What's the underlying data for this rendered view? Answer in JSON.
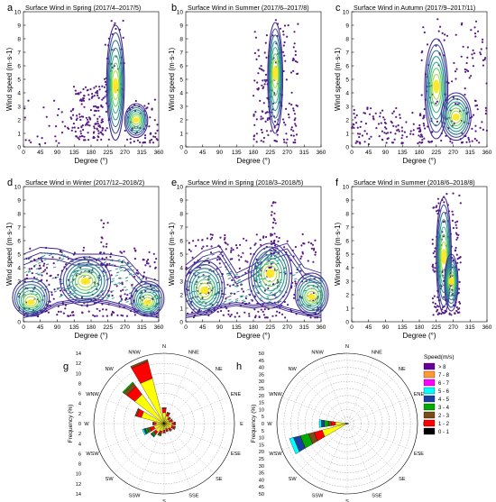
{
  "colors": {
    "scatter": "#5a1a86",
    "contour_low": "#3b1f8f",
    "contour_mid": "#1f9e89",
    "contour_high": "#fde725",
    "grid": "#bbbbbb"
  },
  "chart_data": [
    {
      "type": "scatter",
      "panel": "a",
      "title": "Surface Wind in Spring (2017/4–2017/5)",
      "xlabel": "Degree (°)",
      "ylabel": "Wind speed (m·s-1)",
      "xticks": [
        "0",
        "45",
        "90",
        "135",
        "180",
        "225",
        "270",
        "315",
        "360"
      ],
      "yticks": [
        "0",
        "1",
        "2",
        "3",
        "4",
        "5",
        "6",
        "7",
        "8",
        "9",
        "10"
      ],
      "xlim": [
        0,
        360
      ],
      "ylim": [
        0,
        10
      ],
      "density_peaks": [
        {
          "x": 245,
          "y": 4.2
        },
        {
          "x": 300,
          "y": 2.0
        }
      ],
      "ridges": [
        {
          "center": 245,
          "xspread": 18,
          "peakY": 4.5,
          "topY": 9.0,
          "bottomY": 0.5,
          "width": 22
        },
        {
          "center": 300,
          "xspread": 18,
          "peakY": 2.0,
          "topY": 3.2,
          "bottomY": 0.7,
          "width": 30
        }
      ],
      "scatter_clouds": [
        {
          "x0": 130,
          "x1": 230,
          "y0": 0.5,
          "y1": 4.5,
          "n": 150
        },
        {
          "x0": 0,
          "x1": 130,
          "y0": 0.2,
          "y1": 3.5,
          "n": 30
        },
        {
          "x0": 215,
          "x1": 270,
          "y0": 4,
          "y1": 9.6,
          "n": 40
        },
        {
          "x0": 270,
          "x1": 360,
          "y0": 0.3,
          "y1": 3.5,
          "n": 60
        }
      ]
    },
    {
      "type": "scatter",
      "panel": "b",
      "title": "Surface Wind in Summer (2017/6–2017/8)",
      "xlabel": "Degree (°)",
      "ylabel": "Wind speed (m·s-1)",
      "xticks": [
        "0",
        "45",
        "90",
        "135",
        "180",
        "225",
        "270",
        "315",
        "360"
      ],
      "yticks": [
        "0",
        "1",
        "2",
        "3",
        "4",
        "5",
        "6",
        "7",
        "8",
        "9",
        "10"
      ],
      "xlim": [
        0,
        360
      ],
      "ylim": [
        0,
        10
      ],
      "density_peaks": [
        {
          "x": 235,
          "y": 6.0
        },
        {
          "x": 255,
          "y": 2.8
        }
      ],
      "ridges": [
        {
          "center": 238,
          "xspread": 12,
          "peakY": 5.5,
          "topY": 9.2,
          "bottomY": 1.0,
          "width": 18
        }
      ],
      "scatter_clouds": [
        {
          "x0": 180,
          "x1": 300,
          "y0": 0.3,
          "y1": 9.5,
          "n": 160
        },
        {
          "x0": 200,
          "x1": 230,
          "y0": 2,
          "y1": 5,
          "n": 20
        }
      ]
    },
    {
      "type": "scatter",
      "panel": "c",
      "title": "Surface Wind in Autumn (2017/9–2017/11)",
      "xlabel": "Degree (°)",
      "ylabel": "Wind speed (m·s-1)",
      "xticks": [
        "0",
        "45",
        "90",
        "135",
        "180",
        "225",
        "270",
        "315",
        "360"
      ],
      "yticks": [
        "0",
        "1",
        "2",
        "3",
        "4",
        "5",
        "6",
        "7",
        "8",
        "9",
        "10"
      ],
      "xlim": [
        0,
        360
      ],
      "ylim": [
        0,
        10
      ],
      "density_peaks": [
        {
          "x": 225,
          "y": 4.3
        },
        {
          "x": 275,
          "y": 2.2
        }
      ],
      "ridges": [
        {
          "center": 225,
          "xspread": 22,
          "peakY": 4.5,
          "topY": 8.0,
          "bottomY": 0.6,
          "width": 30
        },
        {
          "center": 278,
          "xspread": 28,
          "peakY": 2.2,
          "topY": 4.0,
          "bottomY": 0.5,
          "width": 40
        }
      ],
      "scatter_clouds": [
        {
          "x0": 0,
          "x1": 200,
          "y0": 0.2,
          "y1": 3.0,
          "n": 120
        },
        {
          "x0": 180,
          "x1": 360,
          "y0": 0.3,
          "y1": 9.5,
          "n": 160
        }
      ]
    },
    {
      "type": "scatter",
      "panel": "d",
      "title": "Surface Wind in Winter (2017/12–2018/2)",
      "xlabel": "Degree (°)",
      "ylabel": "Wind speed (m·s-1)",
      "xticks": [
        "0",
        "45",
        "90",
        "135",
        "180",
        "225",
        "270",
        "315",
        "360"
      ],
      "yticks": [
        "0",
        "1",
        "2",
        "3",
        "4",
        "5",
        "6",
        "7",
        "8",
        "9",
        "10"
      ],
      "xlim": [
        0,
        360
      ],
      "ylim": [
        0,
        10
      ],
      "density_peaks": [
        {
          "x": 20,
          "y": 1.4
        },
        {
          "x": 165,
          "y": 3.0
        },
        {
          "x": 330,
          "y": 1.4
        }
      ],
      "ridges": [
        {
          "center": 20,
          "xspread": 30,
          "peakY": 1.4,
          "topY": 3.2,
          "bottomY": 0.4,
          "width": 50
        },
        {
          "center": 165,
          "xspread": 40,
          "peakY": 3.0,
          "topY": 4.8,
          "bottomY": 1.2,
          "width": 70
        },
        {
          "center": 330,
          "xspread": 30,
          "peakY": 1.4,
          "topY": 3.0,
          "bottomY": 0.4,
          "width": 45
        }
      ],
      "band": {
        "x": [
          0,
          45,
          90,
          135,
          180,
          225,
          270,
          315,
          360
        ],
        "upper": [
          5.0,
          5.5,
          5.4,
          5.0,
          5.0,
          5.0,
          4.8,
          3.4,
          3.0
        ],
        "lower": [
          0.3,
          0.6,
          1.2,
          1.4,
          1.5,
          1.3,
          1.0,
          0.5,
          0.3
        ]
      },
      "scatter_clouds": [
        {
          "x0": 0,
          "x1": 360,
          "y0": 0.4,
          "y1": 5.5,
          "n": 260
        },
        {
          "x0": 205,
          "x1": 225,
          "y0": 4,
          "y1": 8.2,
          "n": 20
        }
      ]
    },
    {
      "type": "scatter",
      "panel": "e",
      "title": "Surface Wind in Spring (2018/3–2018/5)",
      "xlabel": "Degree (°)",
      "ylabel": "Wind speed (m·s-1)",
      "xticks": [
        "0",
        "45",
        "90",
        "135",
        "180",
        "225",
        "270",
        "315",
        "360"
      ],
      "yticks": [
        "0",
        "1",
        "2",
        "3",
        "4",
        "5",
        "6",
        "7",
        "8",
        "9",
        "10"
      ],
      "xlim": [
        0,
        360
      ],
      "ylim": [
        0,
        10
      ],
      "density_peaks": [
        {
          "x": 50,
          "y": 2.3
        },
        {
          "x": 225,
          "y": 3.8
        },
        {
          "x": 335,
          "y": 1.8
        }
      ],
      "ridges": [
        {
          "center": 50,
          "xspread": 35,
          "peakY": 2.3,
          "topY": 4.5,
          "bottomY": 0.5,
          "width": 55
        },
        {
          "center": 225,
          "xspread": 40,
          "peakY": 3.6,
          "topY": 5.8,
          "bottomY": 1.0,
          "width": 60
        },
        {
          "center": 335,
          "xspread": 30,
          "peakY": 1.8,
          "topY": 3.6,
          "bottomY": 0.5,
          "width": 45
        }
      ],
      "band": {
        "x": [
          0,
          45,
          90,
          135,
          180,
          225,
          270,
          315,
          360
        ],
        "upper": [
          4.2,
          5.2,
          5.6,
          3.6,
          4.2,
          5.4,
          5.8,
          4.0,
          3.6
        ],
        "lower": [
          0.3,
          0.5,
          1.0,
          1.2,
          1.0,
          1.2,
          0.8,
          0.5,
          0.3
        ]
      },
      "scatter_clouds": [
        {
          "x0": 0,
          "x1": 360,
          "y0": 0.3,
          "y1": 6.5,
          "n": 320
        },
        {
          "x0": 225,
          "x1": 240,
          "y0": 5,
          "y1": 9,
          "n": 30
        }
      ]
    },
    {
      "type": "scatter",
      "panel": "f",
      "title": "Surface Wind in Summer (2018/6–2018/8)",
      "xlabel": "Degree (°)",
      "ylabel": "Wind speed (m·s-1)",
      "xticks": [
        "0",
        "45",
        "90",
        "135",
        "180",
        "225",
        "270",
        "315",
        "360"
      ],
      "yticks": [
        "0",
        "1",
        "2",
        "3",
        "4",
        "5",
        "6",
        "7",
        "8",
        "9",
        "10"
      ],
      "xlim": [
        0,
        360
      ],
      "ylim": [
        0,
        10
      ],
      "density_peaks": [
        {
          "x": 240,
          "y": 5.0
        },
        {
          "x": 262,
          "y": 3.0
        }
      ],
      "ridges": [
        {
          "center": 245,
          "xspread": 12,
          "peakY": 4.8,
          "topY": 9.2,
          "bottomY": 0.6,
          "width": 18
        },
        {
          "center": 265,
          "xspread": 10,
          "peakY": 3.0,
          "topY": 5.0,
          "bottomY": 0.8,
          "width": 16
        }
      ],
      "scatter_clouds": [
        {
          "x0": 215,
          "x1": 290,
          "y0": 0.5,
          "y1": 9.5,
          "n": 180
        }
      ]
    },
    {
      "type": "windrose",
      "panel": "g",
      "ylabel": "Frequency (%)",
      "rticks": [
        "2",
        "4",
        "6",
        "8",
        "10",
        "12",
        "14"
      ],
      "rmax": 14,
      "directions": [
        "N",
        "NNE",
        "NE",
        "ENE",
        "E",
        "ESE",
        "SE",
        "SSE",
        "S",
        "SSW",
        "SW",
        "WSW",
        "W",
        "WNW",
        "NW",
        "NNW"
      ],
      "bin_colors": [
        "#000000",
        "#ffff00",
        "#ff0000",
        "#7a4a18",
        "#00aa00",
        "#1a3f9f",
        "#00ffff",
        "#ff00ff",
        "#ff9933",
        "#660099"
      ],
      "values": [
        [
          0.2,
          2.0,
          0.8,
          0.2
        ],
        [
          0.1,
          1.5,
          0.6,
          0.2
        ],
        [
          0.1,
          1.0,
          0.4,
          0.2
        ],
        [
          0.1,
          1.0,
          0.5,
          0.2
        ],
        [
          0.1,
          1.5,
          0.5,
          0.2
        ],
        [
          0.1,
          1.5,
          0.5,
          0.3
        ],
        [
          0.1,
          1.2,
          0.4,
          0.3
        ],
        [
          0.1,
          1.0,
          0.4,
          0.2
        ],
        [
          0.1,
          1.2,
          0.4,
          0.2
        ],
        [
          0.1,
          1.5,
          0.5,
          0.3,
          0.2
        ],
        [
          0.1,
          2.0,
          0.5,
          0.3,
          0.3,
          0.2
        ],
        [
          0.1,
          2.0,
          0.8,
          0.6,
          0.4,
          0.3,
          0.3
        ],
        [
          0.1,
          1.5,
          0.5,
          0.2
        ],
        [
          0.2,
          4.5,
          1.0,
          0.3
        ],
        [
          0.3,
          7.0,
          2.0,
          0.8,
          0.3
        ],
        [
          0.3,
          9.0,
          3.5,
          0.4
        ]
      ]
    },
    {
      "type": "windrose",
      "panel": "h",
      "ylabel": "Frequency (%)",
      "rticks": [
        "5",
        "10",
        "15",
        "20",
        "25",
        "30",
        "35",
        "40",
        "45",
        "50"
      ],
      "rmax": 50,
      "directions": [
        "N",
        "NNE",
        "NE",
        "ENE",
        "E",
        "ESE",
        "SE",
        "SSE",
        "S",
        "SSW",
        "SW",
        "WSW",
        "W",
        "WNW",
        "NW",
        "NNW"
      ],
      "bin_colors": [
        "#000000",
        "#ffff00",
        "#ff0000",
        "#7a4a18",
        "#00aa00",
        "#1a3f9f",
        "#00ffff",
        "#ff00ff",
        "#ff9933",
        "#660099"
      ],
      "values": [
        [
          0,
          0
        ],
        [
          0,
          0
        ],
        [
          0.1,
          0.2
        ],
        [
          0.1,
          0.5
        ],
        [
          0.2,
          1.0
        ],
        [
          0.1,
          0.5
        ],
        [
          0.1,
          0.3
        ],
        [
          0,
          0.2
        ],
        [
          0,
          0.2
        ],
        [
          0,
          0.3
        ],
        [
          0.1,
          0.8
        ],
        [
          0.5,
          18.0,
          6.0,
          4.0,
          6.0,
          5.0,
          3.0
        ],
        [
          0.5,
          8.0,
          3.0,
          2.0,
          3.0,
          2.0,
          1.5
        ],
        [
          0.1,
          1.0,
          0.3
        ],
        [
          0,
          0.3
        ],
        [
          0,
          0.2
        ]
      ]
    }
  ],
  "legend": {
    "title": "Speed(m/s)",
    "entries": [
      {
        "label": "> 8",
        "color": "#660099"
      },
      {
        "label": "7 - 8",
        "color": "#ff9933"
      },
      {
        "label": "6 - 7",
        "color": "#ff00ff"
      },
      {
        "label": "5 - 6",
        "color": "#00ffff"
      },
      {
        "label": "4 - 5",
        "color": "#1a3f9f"
      },
      {
        "label": "3 - 4",
        "color": "#00aa00"
      },
      {
        "label": "2 - 3",
        "color": "#7a4a18"
      },
      {
        "label": "1 - 2",
        "color": "#ff0000"
      },
      {
        "label": "0 - 1",
        "color": "#000000"
      }
    ]
  }
}
